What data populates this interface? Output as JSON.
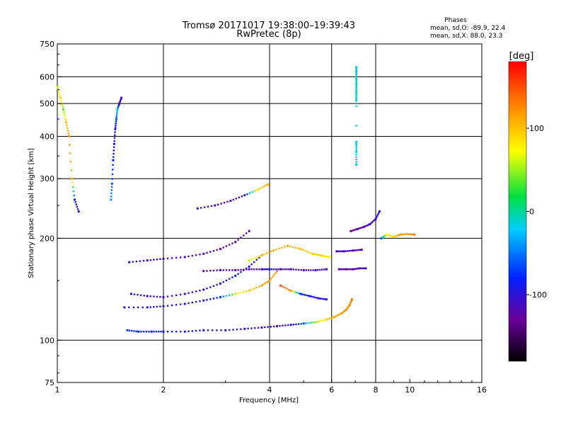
{
  "chart_data": {
    "type": "scatter",
    "title": "Tromsø 20171017 19:38:00–19:39:43",
    "subtitle": "RwPretec (8p)",
    "stats": {
      "header": "Phases",
      "line_o": "mean, sd,O: -89.9, 22.4",
      "line_x": "mean, sd,X:  88.0, 23.3"
    },
    "xlabel": "Frequency [MHz]",
    "ylabel": "Stationary phase Virtual Height [km]",
    "x_scale": "log",
    "y_scale": "log",
    "xlim": [
      1,
      16
    ],
    "ylim": [
      75,
      750
    ],
    "x_ticks": [
      {
        "value": 1,
        "label": "1"
      },
      {
        "value": 2,
        "label": "2"
      },
      {
        "value": 4,
        "label": "4"
      },
      {
        "value": 6,
        "label": "6"
      },
      {
        "value": 8,
        "label": "8"
      },
      {
        "value": 10,
        "label": "10"
      },
      {
        "value": 16,
        "label": "16"
      }
    ],
    "x_grid": [
      2,
      4,
      6,
      8
    ],
    "y_ticks": [
      {
        "value": 75,
        "label": "75"
      },
      {
        "value": 100,
        "label": "100"
      },
      {
        "value": 200,
        "label": "200"
      },
      {
        "value": 300,
        "label": "300"
      },
      {
        "value": 400,
        "label": "400"
      },
      {
        "value": 500,
        "label": "500"
      },
      {
        "value": 600,
        "label": "600"
      },
      {
        "value": 750,
        "label": "750"
      }
    ],
    "y_grid": [
      100,
      200,
      300,
      400,
      500,
      600
    ],
    "grid": true,
    "colorbar": {
      "label": "[deg]",
      "range": [
        -180,
        180
      ],
      "ticks": [
        {
          "value": 100,
          "label": "100"
        },
        {
          "value": 0,
          "label": "0"
        },
        {
          "value": -100,
          "label": "-100"
        }
      ]
    },
    "traces": [
      {
        "f": [
          1.58,
          1.7,
          1.85,
          2.0,
          2.3,
          2.6,
          3.0,
          3.4,
          3.8,
          4.2,
          4.6,
          5.0,
          5.4,
          5.8,
          6.1,
          6.4,
          6.6,
          6.75,
          6.85
        ],
        "h": [
          107,
          106,
          106,
          106,
          106,
          107,
          107,
          108,
          109,
          110,
          111,
          112,
          113,
          115,
          117,
          120,
          123,
          127,
          132
        ],
        "p": [
          -70,
          -80,
          -80,
          -85,
          -90,
          -95,
          -100,
          -105,
          -110,
          -115,
          -100,
          -60,
          50,
          90,
          110,
          115,
          120,
          125,
          130
        ]
      },
      {
        "f": [
          1.55,
          1.8,
          2.0,
          2.3,
          2.6,
          2.9,
          3.2,
          3.5,
          3.8,
          4.0,
          4.2
        ],
        "h": [
          125,
          125,
          126,
          128,
          131,
          134,
          137,
          140,
          145,
          150,
          160
        ],
        "p": [
          -95,
          -100,
          -100,
          -100,
          -95,
          -70,
          60,
          95,
          110,
          115,
          120
        ]
      },
      {
        "f": [
          1.62,
          1.8,
          2.0,
          2.3,
          2.6,
          2.9,
          3.2,
          3.5,
          3.8
        ],
        "h": [
          137,
          135,
          134,
          137,
          141,
          147,
          155,
          165,
          178
        ],
        "p": [
          -100,
          -105,
          -110,
          -110,
          -110,
          -90,
          -80,
          -90,
          -100
        ]
      },
      {
        "f": [
          1.6,
          1.8,
          2.0,
          2.3,
          2.6,
          2.9,
          3.2,
          3.5
        ],
        "h": [
          170,
          172,
          174,
          176,
          180,
          186,
          195,
          210
        ],
        "p": [
          -100,
          -105,
          -105,
          -110,
          -115,
          -120,
          -125,
          -120
        ]
      },
      {
        "f": [
          2.6,
          2.9,
          3.2,
          3.5,
          3.8,
          4.0,
          4.3,
          4.6,
          5.0,
          5.4,
          5.8
        ],
        "h": [
          160,
          161,
          161,
          162,
          162,
          162,
          162,
          162,
          161,
          161,
          162
        ],
        "p": [
          -120,
          -125,
          -125,
          -120,
          -110,
          -90,
          -110,
          -115,
          -120,
          -115,
          -110
        ]
      },
      {
        "f": [
          3.5,
          3.8,
          4.1,
          4.5,
          4.9,
          5.3,
          5.6,
          5.9
        ],
        "h": [
          172,
          178,
          184,
          190,
          186,
          180,
          178,
          176
        ],
        "p": [
          60,
          100,
          110,
          110,
          105,
          95,
          90,
          80
        ]
      },
      {
        "f": [
          4.3,
          4.6,
          4.9,
          5.2,
          5.5,
          5.8
        ],
        "h": [
          145,
          140,
          137,
          135,
          133,
          132
        ],
        "p": [
          150,
          120,
          -80,
          -90,
          -100,
          -100
        ]
      },
      {
        "f": [
          6.3,
          6.6,
          6.9,
          7.2,
          7.5
        ],
        "h": [
          162,
          162,
          162,
          163,
          163
        ],
        "p": [
          -120,
          -125,
          -125,
          -120,
          -110
        ]
      },
      {
        "f": [
          6.2,
          6.5,
          6.9,
          7.3
        ],
        "h": [
          183,
          183,
          184,
          185
        ],
        "p": [
          -110,
          -115,
          -120,
          -115
        ]
      },
      {
        "f": [
          2.5,
          2.8,
          3.1,
          3.4,
          3.7,
          3.95
        ],
        "h": [
          245,
          250,
          258,
          268,
          278,
          288
        ],
        "p": [
          -100,
          -110,
          -120,
          -110,
          90,
          110
        ]
      },
      {
        "f": [
          6.8,
          7.1,
          7.4,
          7.7,
          8.0,
          8.2
        ],
        "h": [
          210,
          213,
          216,
          220,
          228,
          240
        ],
        "p": [
          -130,
          -125,
          -120,
          -115,
          -110,
          -100
        ]
      },
      {
        "f": [
          7.05,
          7.05,
          7.05,
          7.05,
          7.05,
          7.05,
          7.05,
          7.05,
          7.05
        ],
        "h": [
          510,
          540,
          570,
          590,
          620,
          640,
          330,
          360,
          385
        ],
        "p": [
          -20,
          -10,
          -15,
          -5,
          -30,
          -20,
          -30,
          -15,
          -25
        ]
      },
      {
        "f": [
          1.42,
          1.43,
          1.44,
          1.45,
          1.46,
          1.47,
          1.48,
          1.5,
          1.52
        ],
        "h": [
          260,
          290,
          340,
          380,
          420,
          450,
          480,
          500,
          520
        ],
        "p": [
          -40,
          -60,
          -80,
          -90,
          -100,
          -60,
          -20,
          -110,
          -100
        ]
      },
      {
        "f": [
          1.0,
          1.02,
          1.04,
          1.06,
          1.08,
          1.1,
          1.12,
          1.15
        ],
        "h": [
          560,
          520,
          480,
          440,
          400,
          300,
          260,
          240
        ],
        "p": [
          60,
          90,
          40,
          100,
          120,
          110,
          -90,
          -100
        ]
      },
      {
        "f": [
          8.3,
          8.6,
          9.0,
          9.4,
          9.8,
          10.3
        ],
        "h": [
          200,
          205,
          202,
          205,
          206,
          205
        ],
        "p": [
          -60,
          80,
          90,
          120,
          110,
          130
        ]
      }
    ]
  }
}
